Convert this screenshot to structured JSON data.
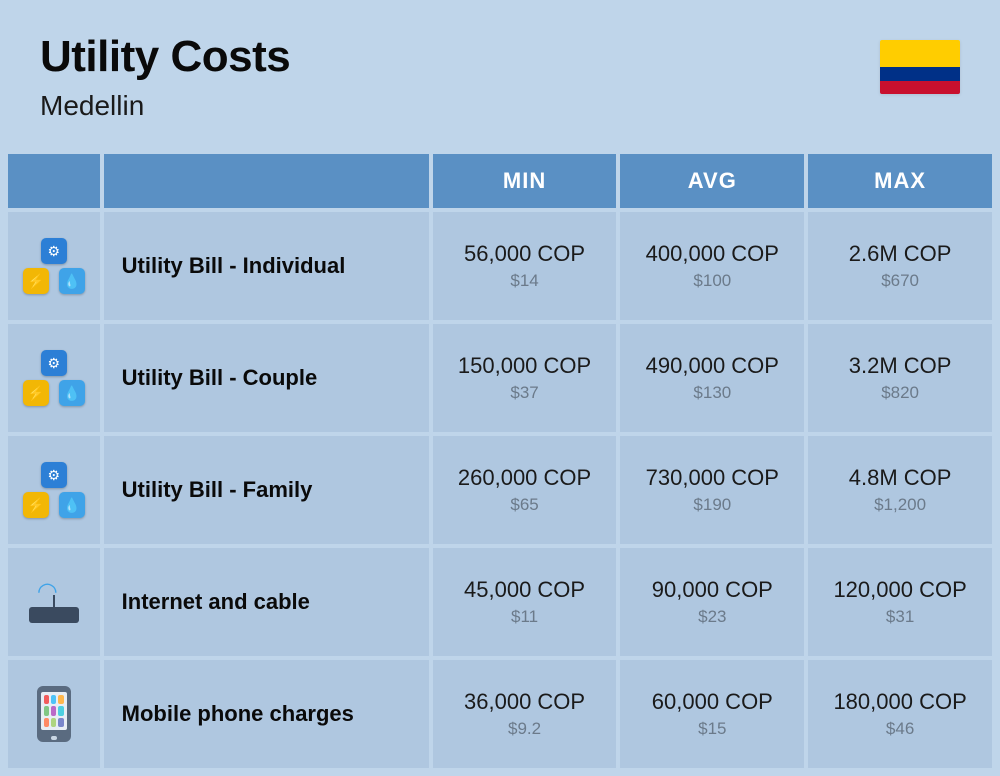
{
  "header": {
    "title": "Utility Costs",
    "subtitle": "Medellin"
  },
  "flag": {
    "top": "#ffcd00",
    "mid": "#003087",
    "bot": "#c8102e"
  },
  "columns": {
    "min": "MIN",
    "avg": "AVG",
    "max": "MAX"
  },
  "rows": [
    {
      "icon": "utility",
      "label": "Utility Bill - Individual",
      "min": {
        "primary": "56,000 COP",
        "secondary": "$14"
      },
      "avg": {
        "primary": "400,000 COP",
        "secondary": "$100"
      },
      "max": {
        "primary": "2.6M COP",
        "secondary": "$670"
      }
    },
    {
      "icon": "utility",
      "label": "Utility Bill - Couple",
      "min": {
        "primary": "150,000 COP",
        "secondary": "$37"
      },
      "avg": {
        "primary": "490,000 COP",
        "secondary": "$130"
      },
      "max": {
        "primary": "3.2M COP",
        "secondary": "$820"
      }
    },
    {
      "icon": "utility",
      "label": "Utility Bill - Family",
      "min": {
        "primary": "260,000 COP",
        "secondary": "$65"
      },
      "avg": {
        "primary": "730,000 COP",
        "secondary": "$190"
      },
      "max": {
        "primary": "4.8M COP",
        "secondary": "$1,200"
      }
    },
    {
      "icon": "router",
      "label": "Internet and cable",
      "min": {
        "primary": "45,000 COP",
        "secondary": "$11"
      },
      "avg": {
        "primary": "90,000 COP",
        "secondary": "$23"
      },
      "max": {
        "primary": "120,000 COP",
        "secondary": "$31"
      }
    },
    {
      "icon": "phone",
      "label": "Mobile phone charges",
      "min": {
        "primary": "36,000 COP",
        "secondary": "$9.2"
      },
      "avg": {
        "primary": "60,000 COP",
        "secondary": "$15"
      },
      "max": {
        "primary": "180,000 COP",
        "secondary": "$46"
      }
    }
  ],
  "colors": {
    "page_bg": "#bfd5ea",
    "header_bg": "#5a90c4",
    "cell_bg": "#afc7e0",
    "text_primary": "#1a1a1a",
    "text_secondary": "#6b7a8a",
    "header_text": "#ffffff"
  },
  "phone_apps": [
    "#f25c5c",
    "#4fc3f7",
    "#ffb74d",
    "#81c784",
    "#ba68c8",
    "#4dd0e1",
    "#ff8a65",
    "#aed581",
    "#7986cb"
  ]
}
